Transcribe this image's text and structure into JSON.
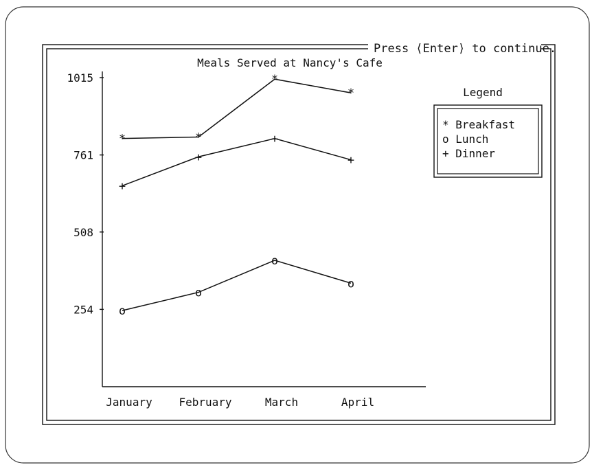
{
  "prompt": "Press ⟨Enter⟩ to continue.",
  "chart_data": {
    "type": "line",
    "title": "Meals Served at Nancy's Cafe",
    "categories": [
      "January",
      "February",
      "March",
      "April"
    ],
    "yticks": [
      254,
      508,
      761,
      1015
    ],
    "ylim": [
      0,
      1015
    ],
    "grid": false,
    "legend_title": "Legend",
    "legend_position": "right",
    "series": [
      {
        "name": "Breakfast",
        "marker": "*",
        "values": [
          815,
          820,
          1010,
          965
        ]
      },
      {
        "name": "Lunch",
        "marker": "o",
        "values": [
          250,
          310,
          415,
          340
        ]
      },
      {
        "name": "Dinner",
        "marker": "+",
        "values": [
          660,
          755,
          815,
          745
        ]
      }
    ],
    "legend_entries": [
      "* Breakfast",
      "o Lunch",
      "+ Dinner"
    ]
  }
}
